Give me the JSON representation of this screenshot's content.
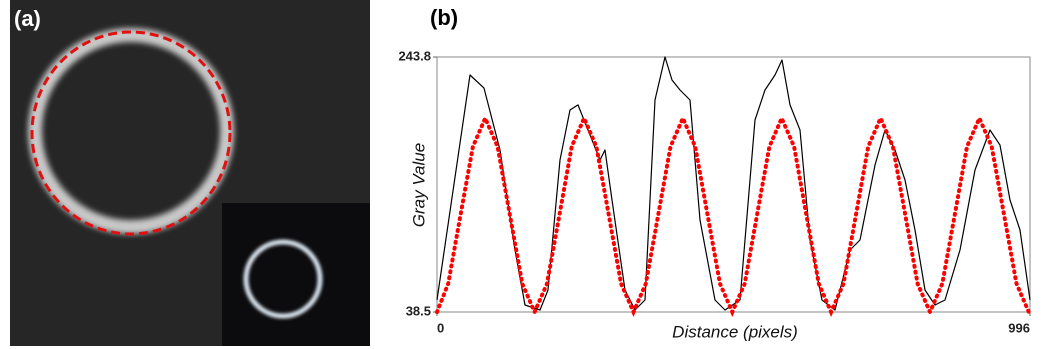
{
  "panel_a": {
    "label": "(a)"
  },
  "chart_data": {
    "type": "line",
    "panel_label": "(b)",
    "xlabel": "Distance (pixels)",
    "ylabel": "Gray Value",
    "xlim": [
      0,
      996
    ],
    "xticks": [
      0,
      996
    ],
    "ylim": [
      38.5,
      243.8
    ],
    "yticks": [
      38.5,
      243.8
    ],
    "series": [
      {
        "color": "#000000",
        "style": "solid",
        "x": [
          0,
          55.4,
          78.9,
          105.8,
          131.0,
          147.8,
          173.0,
          186.4,
          206.6,
          223.4,
          236.8,
          257.0,
          273.8,
          282.2,
          293.9,
          315.8,
          332.6,
          349.4,
          366.2,
          383.0,
          394.7,
          408.1,
          424.9,
          441.7,
          466.9,
          483.7,
          508.9,
          534.1,
          550.9,
          567.7,
          579.5,
          592.9,
          609.7,
          626.5,
          646.6,
          668.5,
          693.7,
          710.5,
          735.7,
          752.5,
          769.3,
          786.1,
          802.9,
          819.6,
          836.4,
          853.2,
          878.4,
          903.6,
          928.8,
          945.6,
          962.4,
          979.2,
          996
        ],
        "values": [
          48.2,
          229.3,
          218.8,
          168.9,
          88.4,
          44.1,
          40.1,
          56.2,
          160.9,
          201.1,
          205.2,
          181.0,
          160.9,
          168.9,
          128.7,
          56.2,
          40.1,
          48.2,
          209.2,
          243.8,
          225.3,
          217.2,
          209.2,
          112.6,
          48.2,
          40.1,
          48.2,
          193.1,
          217.2,
          229.3,
          241.4,
          205.2,
          185.0,
          96.5,
          48.2,
          40.1,
          88.4,
          96.5,
          156.8,
          185.0,
          168.9,
          144.8,
          104.5,
          56.2,
          44.1,
          48.2,
          88.4,
          152.8,
          185.0,
          172.9,
          128.7,
          104.5,
          48.2
        ]
      },
      {
        "color": "#ff0000",
        "style": "dotted",
        "x": [
          0,
          18.75,
          39.5,
          60.25,
          81,
          101.75,
          122.5,
          143.25,
          164,
          184.75,
          205.5,
          226.25,
          247,
          267.75,
          288.5,
          309.25,
          330,
          350.75,
          371.5,
          392.25,
          413,
          433.75,
          454.5,
          475.25,
          496,
          516.75,
          537.5,
          558.25,
          579,
          599.75,
          620.5,
          641.25,
          662,
          682.75,
          703.5,
          724.25,
          745,
          765.75,
          786.5,
          807.25,
          828,
          848.75,
          869.5,
          890.25,
          911,
          931.75,
          952.5,
          973.25,
          994
        ],
        "values": [
          38.5,
          61.3,
          116.5,
          171.7,
          194.5,
          171.7,
          116.5,
          61.3,
          38.5,
          61.3,
          116.5,
          171.7,
          194.5,
          171.7,
          116.5,
          61.3,
          38.5,
          61.3,
          116.5,
          171.7,
          194.5,
          171.7,
          116.5,
          61.3,
          38.5,
          61.3,
          116.5,
          171.7,
          194.5,
          171.7,
          116.5,
          61.3,
          38.5,
          61.3,
          116.5,
          171.7,
          194.5,
          171.7,
          116.5,
          61.3,
          38.5,
          61.3,
          116.5,
          171.7,
          194.5,
          171.7,
          116.5,
          61.3,
          38.5
        ]
      }
    ]
  }
}
